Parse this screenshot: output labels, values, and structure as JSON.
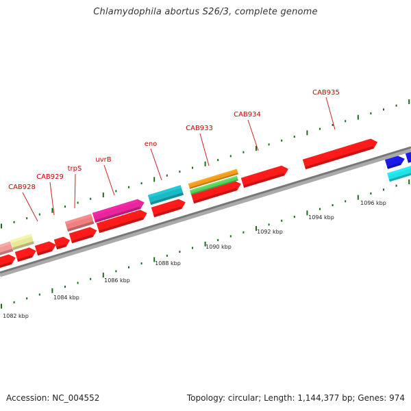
{
  "map": {
    "title": "Chlamydophila abortus S26/3, complete genome",
    "accession": "Accession: NC_004552",
    "summary": "Topology: circular; Length: 1,144,377 bp; Genes: 974"
  },
  "colors": {
    "gene_default": "#ff1a1a",
    "backbone": "#888888",
    "tick": "#1a6b1a",
    "label_line": "#cc2222",
    "gene_label": "#cc0000",
    "trpS": "#f08080",
    "uvrB": "#e8259a",
    "eno": "#1cb9c4",
    "CAB933_top": "#f59a1c",
    "CAB933_bottom": "#5cd15c",
    "khaki": "#e8e89a",
    "pink_left": "#f29a9a",
    "blue": "#1a1ae6",
    "cyan": "#20e0e8"
  },
  "gene_labels": [
    "CAB928",
    "CAB929",
    "trpS",
    "uvrB",
    "eno",
    "CAB933",
    "CAB934",
    "CAB935"
  ],
  "scale_labels": [
    "1082 kbp",
    "1084 kbp",
    "1086 kbp",
    "1088 kbp",
    "1090 kbp",
    "1092 kbp",
    "1094 kbp",
    "1096 kbp"
  ]
}
